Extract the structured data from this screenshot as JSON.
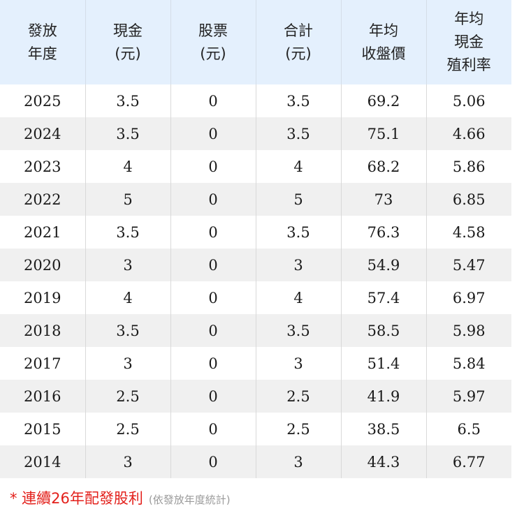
{
  "table": {
    "headers": [
      [
        "發放",
        "年度"
      ],
      [
        "現金",
        "(元)"
      ],
      [
        "股票",
        "(元)"
      ],
      [
        "合計",
        "(元)"
      ],
      [
        "年均",
        "收盤價"
      ],
      [
        "年均",
        "現金",
        "殖利率"
      ]
    ],
    "rows": [
      [
        "2025",
        "3.5",
        "0",
        "3.5",
        "69.2",
        "5.06"
      ],
      [
        "2024",
        "3.5",
        "0",
        "3.5",
        "75.1",
        "4.66"
      ],
      [
        "2023",
        "4",
        "0",
        "4",
        "68.2",
        "5.86"
      ],
      [
        "2022",
        "5",
        "0",
        "5",
        "73",
        "6.85"
      ],
      [
        "2021",
        "3.5",
        "0",
        "3.5",
        "76.3",
        "4.58"
      ],
      [
        "2020",
        "3",
        "0",
        "3",
        "54.9",
        "5.47"
      ],
      [
        "2019",
        "4",
        "0",
        "4",
        "57.4",
        "6.97"
      ],
      [
        "2018",
        "3.5",
        "0",
        "3.5",
        "58.5",
        "5.98"
      ],
      [
        "2017",
        "3",
        "0",
        "3",
        "51.4",
        "5.84"
      ],
      [
        "2016",
        "2.5",
        "0",
        "2.5",
        "41.9",
        "5.97"
      ],
      [
        "2015",
        "2.5",
        "0",
        "2.5",
        "38.5",
        "6.5"
      ],
      [
        "2014",
        "3",
        "0",
        "3",
        "44.3",
        "6.77"
      ]
    ]
  },
  "footnote": {
    "main": "* 連續26年配發股利",
    "sub": "(依發放年度統計)"
  },
  "colors": {
    "header_bg": "#e4f0fd",
    "stripe_bg": "#f0f0f0",
    "footnote_red": "#e3201b",
    "footnote_gray": "#9a9a9a"
  }
}
